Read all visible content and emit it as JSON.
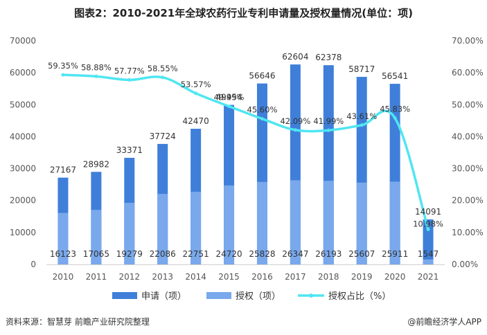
{
  "header": {
    "title": "图表2：2010-2021年全球农药行业专利申请量及授权量情况(单位：项)"
  },
  "footer": {
    "source": "资料来源：智慧芽 前瞻产业研究院整理",
    "brand": "@前瞻经济学人APP"
  },
  "colors": {
    "applications": "#3f7fd9",
    "grants": "#79a8ec",
    "ratio": "#4fe6f2"
  },
  "chart_data": {
    "type": "bar",
    "categories": [
      "2010",
      "2011",
      "2012",
      "2013",
      "2014",
      "2015",
      "2016",
      "2017",
      "2018",
      "2019",
      "2020",
      "2021"
    ],
    "series": [
      {
        "name": "申请（项）",
        "type": "bar",
        "axis": "left",
        "values": [
          27167,
          28982,
          33371,
          37724,
          42470,
          49954,
          56646,
          62604,
          62378,
          58717,
          56541,
          14091
        ],
        "labels": [
          "27167",
          "28982",
          "33371",
          "37724",
          "42470",
          "49954",
          "56646",
          "62604",
          "62378",
          "58717",
          "56541",
          "14091"
        ]
      },
      {
        "name": "授权（项）",
        "type": "bar",
        "axis": "left",
        "values": [
          16123,
          17065,
          19279,
          22086,
          22751,
          24720,
          25828,
          26347,
          26193,
          25607,
          25911,
          1547
        ],
        "labels": [
          "16123",
          "17065",
          "19279",
          "22086",
          "22751",
          "24720",
          "25828",
          "26347",
          "26193",
          "25607",
          "25911",
          "1547"
        ]
      },
      {
        "name": "授权占比（%）",
        "type": "line",
        "axis": "right",
        "values": [
          59.35,
          58.88,
          57.77,
          58.55,
          53.57,
          49.49,
          45.6,
          42.09,
          41.99,
          43.61,
          45.83,
          10.98
        ],
        "labels": [
          "59.35%",
          "58.88%",
          "57.77%",
          "58.55%",
          "53.57%",
          "49.49%",
          "45.60%",
          "42.09%",
          "41.99%",
          "43.61%",
          "45.83%",
          "10.98%"
        ]
      }
    ],
    "ylim_left": [
      0,
      70000
    ],
    "yticks_left": [
      "0",
      "10000",
      "20000",
      "30000",
      "40000",
      "50000",
      "60000",
      "70000"
    ],
    "ylim_right": [
      0,
      70
    ],
    "yticks_right": [
      "0.00%",
      "10.00%",
      "20.00%",
      "30.00%",
      "40.00%",
      "50.00%",
      "60.00%",
      "70.00%"
    ],
    "grid": false,
    "legend_position": "bottom"
  }
}
